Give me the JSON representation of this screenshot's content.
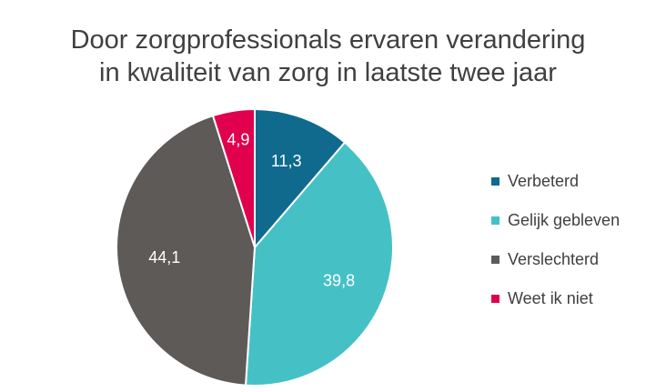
{
  "chart_data": {
    "type": "pie",
    "title_lines": [
      "Door zorgprofessionals ervaren verandering",
      "in kwaliteit van zorg in laatste twee jaar"
    ],
    "categories": [
      "Verbeterd",
      "Gelijk gebleven",
      "Verslechterd",
      "Weet ik niet"
    ],
    "values": [
      11.3,
      39.8,
      44.1,
      4.9
    ],
    "value_labels": [
      "11,3",
      "39,8",
      "44,1",
      "4,9"
    ],
    "colors": [
      "#0f6a8e",
      "#45c1c6",
      "#5e5a58",
      "#e0004d"
    ],
    "legend_position": "right"
  }
}
